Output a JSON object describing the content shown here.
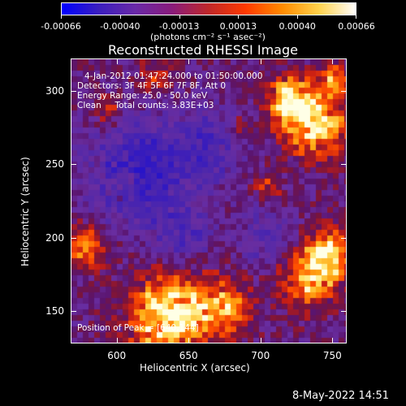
{
  "colorbar": {
    "stops": [
      "#0000ff",
      "#3b1fbf",
      "#6a2aa8",
      "#8a1c7c",
      "#c0282a",
      "#ff3a00",
      "#ff8c00",
      "#ffd34d",
      "#ffffff"
    ],
    "ticks": [
      "-0.00066",
      "-0.00040",
      "-0.00013",
      "0.00013",
      "0.00040",
      "0.00066"
    ],
    "units_label": "(photons cm⁻² s⁻¹ asec⁻²)"
  },
  "plot": {
    "title": "Reconstructed RHESSI Image",
    "xlabel": "Heliocentric X (arcsec)",
    "ylabel": "Heliocentric Y (arcsec)",
    "x_ticks": [
      "600",
      "650",
      "700",
      "750"
    ],
    "y_ticks": [
      "300",
      "250",
      "200",
      "150"
    ],
    "xlim": [
      568,
      760
    ],
    "ylim": [
      128,
      322
    ],
    "overlay_lines": [
      "4-Jan-2012 01:47:24.000 to 01:50:00.000",
      "Detectors: 3F 4F 5F 6F 7F 8F, Att 0",
      "Energy Range: 25.0 - 50.0 keV",
      "Clean     Total counts: 3.83E+03"
    ],
    "peak_label": "Position of Peak = [640,144]",
    "peak": [
      640,
      144
    ]
  },
  "footer": {
    "timestamp": "8-May-2022 14:51"
  }
}
